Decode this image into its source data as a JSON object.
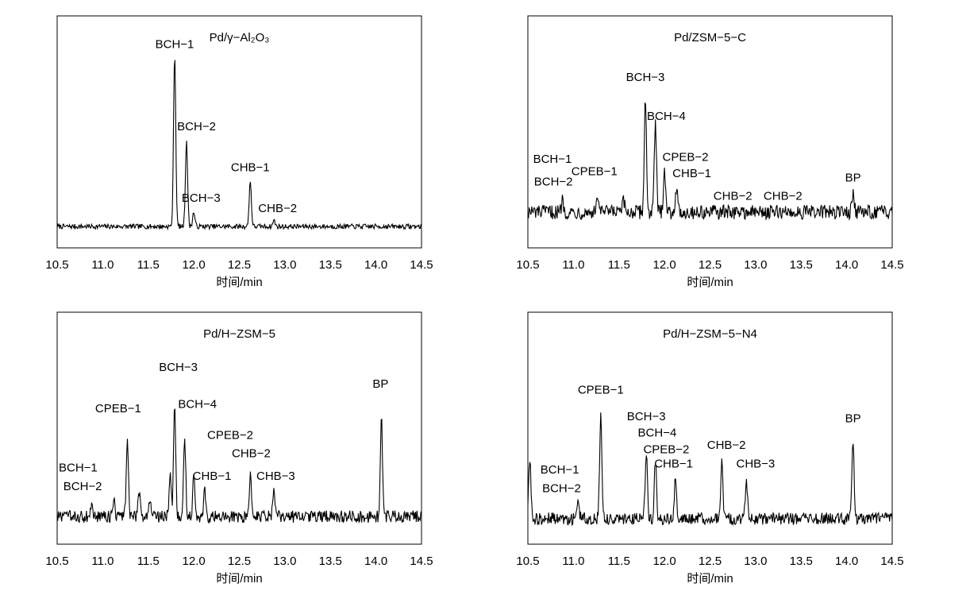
{
  "chart_data": [
    {
      "type": "line",
      "title": "Pd/γ−Al₂O₃",
      "xlabel": "时间/min",
      "xlim": [
        10.5,
        14.5
      ],
      "xticks": [
        "10.5",
        "11.0",
        "11.5",
        "12.0",
        "12.5",
        "13.0",
        "13.5",
        "14.0",
        "14.5"
      ],
      "grid": false,
      "baseline": 0.05,
      "noise": 0.012,
      "peaks": [
        {
          "x": 11.79,
          "height": 0.84
        },
        {
          "x": 11.92,
          "height": 0.42
        },
        {
          "x": 12.0,
          "height": 0.07
        },
        {
          "x": 12.62,
          "height": 0.22
        },
        {
          "x": 12.88,
          "height": 0.03
        }
      ],
      "annotations": [
        {
          "text": "BCH−1",
          "x": 11.79,
          "y": 0.92
        },
        {
          "text": "BCH−2",
          "x": 12.03,
          "y": 0.52
        },
        {
          "text": "BCH−3",
          "x": 12.08,
          "y": 0.17
        },
        {
          "text": "CHB−1",
          "x": 12.62,
          "y": 0.32
        },
        {
          "text": "CHB−2",
          "x": 12.92,
          "y": 0.12
        }
      ]
    },
    {
      "type": "line",
      "title": "Pd/ZSM−5−C",
      "xlabel": "时间/min",
      "xlim": [
        10.5,
        14.5
      ],
      "xticks": [
        "10.5",
        "11.0",
        "11.5",
        "12.0",
        "12.5",
        "13.0",
        "13.5",
        "14.0",
        "14.5"
      ],
      "grid": false,
      "baseline": 0.12,
      "noise": 0.035,
      "peaks": [
        {
          "x": 10.88,
          "height": 0.06
        },
        {
          "x": 11.27,
          "height": 0.08
        },
        {
          "x": 11.55,
          "height": 0.05
        },
        {
          "x": 11.79,
          "height": 0.55
        },
        {
          "x": 11.9,
          "height": 0.43
        },
        {
          "x": 12.0,
          "height": 0.22
        },
        {
          "x": 12.13,
          "height": 0.12
        },
        {
          "x": 14.07,
          "height": 0.1
        }
      ],
      "annotations": [
        {
          "text": "BCH−1",
          "x": 10.77,
          "y": 0.36
        },
        {
          "text": "BCH−2",
          "x": 10.78,
          "y": 0.25
        },
        {
          "text": "CPEB−1",
          "x": 11.23,
          "y": 0.3
        },
        {
          "text": "BCH−3",
          "x": 11.79,
          "y": 0.76
        },
        {
          "text": "BCH−4",
          "x": 12.02,
          "y": 0.57
        },
        {
          "text": "CPEB−2",
          "x": 12.23,
          "y": 0.37
        },
        {
          "text": "CHB−1",
          "x": 12.3,
          "y": 0.29
        },
        {
          "text": "CHB−2",
          "x": 12.75,
          "y": 0.18
        },
        {
          "text": "CHB−2",
          "x": 13.3,
          "y": 0.18
        },
        {
          "text": "BP",
          "x": 14.07,
          "y": 0.27
        }
      ]
    },
    {
      "type": "line",
      "title": "Pd/H−ZSM−5",
      "xlabel": "时间/min",
      "xlim": [
        10.5,
        14.5
      ],
      "xticks": [
        "10.5",
        "11.0",
        "11.5",
        "12.0",
        "12.5",
        "13.0",
        "13.5",
        "14.0",
        "14.5"
      ],
      "grid": false,
      "baseline": 0.08,
      "noise": 0.03,
      "peaks": [
        {
          "x": 10.88,
          "height": 0.05
        },
        {
          "x": 11.12,
          "height": 0.08
        },
        {
          "x": 11.27,
          "height": 0.37
        },
        {
          "x": 11.4,
          "height": 0.13
        },
        {
          "x": 11.52,
          "height": 0.1
        },
        {
          "x": 11.74,
          "height": 0.2
        },
        {
          "x": 11.79,
          "height": 0.55
        },
        {
          "x": 11.9,
          "height": 0.38
        },
        {
          "x": 12.0,
          "height": 0.2
        },
        {
          "x": 12.12,
          "height": 0.12
        },
        {
          "x": 12.62,
          "height": 0.2
        },
        {
          "x": 12.88,
          "height": 0.14
        },
        {
          "x": 14.06,
          "height": 0.48
        }
      ],
      "annotations": [
        {
          "text": "BCH−1",
          "x": 10.73,
          "y": 0.3
        },
        {
          "text": "BCH−2",
          "x": 10.78,
          "y": 0.21
        },
        {
          "text": "CPEB−1",
          "x": 11.17,
          "y": 0.59
        },
        {
          "text": "BCH−3",
          "x": 11.83,
          "y": 0.79
        },
        {
          "text": "BCH−4",
          "x": 12.04,
          "y": 0.61
        },
        {
          "text": "CPEB−2",
          "x": 12.4,
          "y": 0.46
        },
        {
          "text": "CHB−2",
          "x": 12.63,
          "y": 0.37
        },
        {
          "text": "CHB−1",
          "x": 12.2,
          "y": 0.26
        },
        {
          "text": "CHB−3",
          "x": 12.9,
          "y": 0.26
        },
        {
          "text": "BP",
          "x": 14.05,
          "y": 0.71
        }
      ]
    },
    {
      "type": "line",
      "title": "Pd/H−ZSM−5−N4",
      "xlabel": "时间/min",
      "xlim": [
        10.5,
        14.5
      ],
      "xticks": [
        "10.5",
        "11.0",
        "11.5",
        "12.0",
        "12.5",
        "13.0",
        "13.5",
        "14.0",
        "14.5"
      ],
      "grid": false,
      "baseline": 0.07,
      "noise": 0.03,
      "peaks": [
        {
          "x": 10.52,
          "height": 0.3
        },
        {
          "x": 11.05,
          "height": 0.1
        },
        {
          "x": 11.3,
          "height": 0.5
        },
        {
          "x": 11.8,
          "height": 0.32
        },
        {
          "x": 11.9,
          "height": 0.28
        },
        {
          "x": 12.12,
          "height": 0.2
        },
        {
          "x": 12.63,
          "height": 0.27
        },
        {
          "x": 12.9,
          "height": 0.18
        },
        {
          "x": 14.07,
          "height": 0.37
        }
      ],
      "annotations": [
        {
          "text": "BCH−1",
          "x": 10.85,
          "y": 0.29
        },
        {
          "text": "BCH−2",
          "x": 10.87,
          "y": 0.2
        },
        {
          "text": "CPEB−1",
          "x": 11.3,
          "y": 0.68
        },
        {
          "text": "BCH−3",
          "x": 11.8,
          "y": 0.55
        },
        {
          "text": "BCH−4",
          "x": 11.92,
          "y": 0.47
        },
        {
          "text": "CPEB−2",
          "x": 12.02,
          "y": 0.39
        },
        {
          "text": "CHB−1",
          "x": 12.1,
          "y": 0.32
        },
        {
          "text": "CHB−2",
          "x": 12.68,
          "y": 0.41
        },
        {
          "text": "CHB−3",
          "x": 13.0,
          "y": 0.32
        },
        {
          "text": "BP",
          "x": 14.07,
          "y": 0.54
        }
      ]
    }
  ]
}
